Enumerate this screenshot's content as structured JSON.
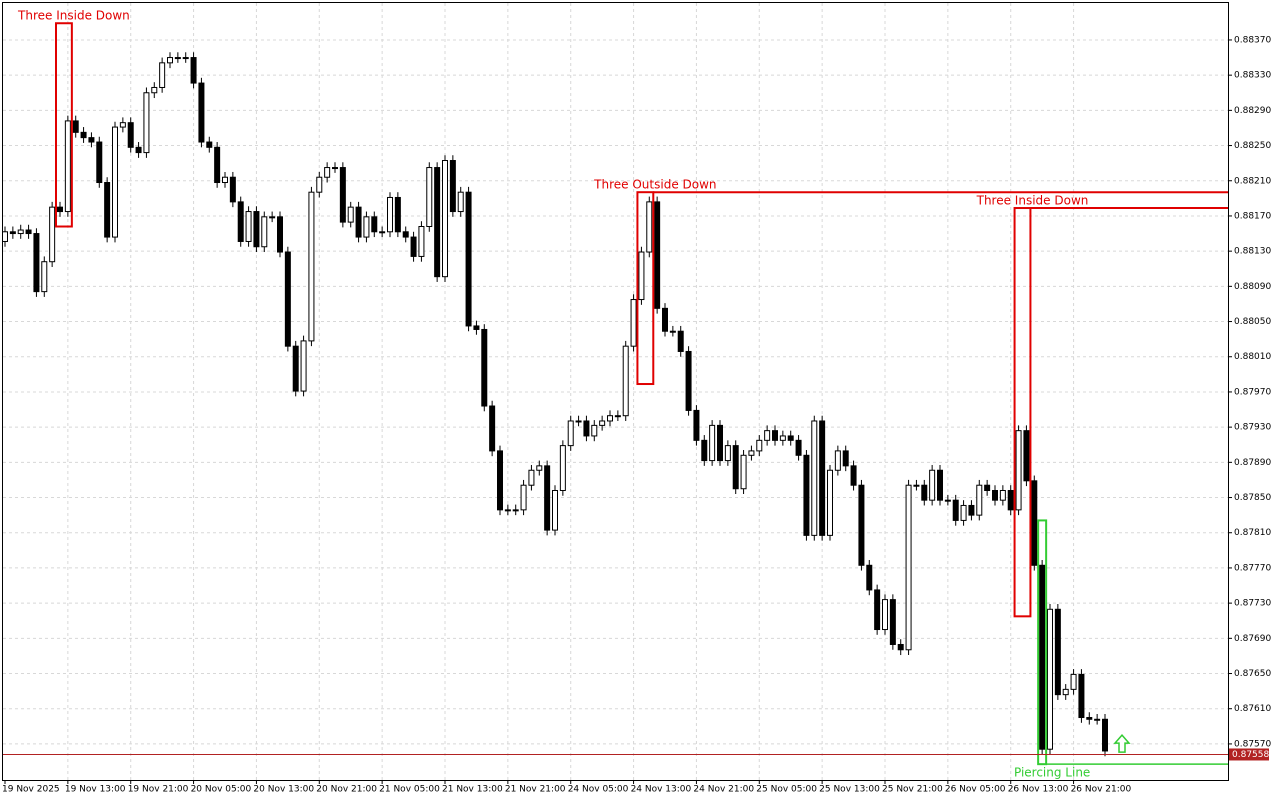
{
  "chart_data": {
    "type": "candlestick",
    "bull_color": "#ffffff",
    "bear_color": "#000000",
    "edge_color": "#000000",
    "grid": true,
    "ylim": [
      0.87529,
      0.88412
    ],
    "yticks": [
      {
        "value": 0.8837,
        "label": "0.88370"
      },
      {
        "value": 0.8833,
        "label": "0.88330"
      },
      {
        "value": 0.8829,
        "label": "0.88290"
      },
      {
        "value": 0.8825,
        "label": "0.88250"
      },
      {
        "value": 0.8821,
        "label": "0.88210"
      },
      {
        "value": 0.8817,
        "label": "0.88170"
      },
      {
        "value": 0.8813,
        "label": "0.88130"
      },
      {
        "value": 0.8809,
        "label": "0.88090"
      },
      {
        "value": 0.8805,
        "label": "0.88050"
      },
      {
        "value": 0.8801,
        "label": "0.88010"
      },
      {
        "value": 0.8797,
        "label": "0.87970"
      },
      {
        "value": 0.8793,
        "label": "0.87930"
      },
      {
        "value": 0.8789,
        "label": "0.87890"
      },
      {
        "value": 0.8785,
        "label": "0.87850"
      },
      {
        "value": 0.8781,
        "label": "0.87810"
      },
      {
        "value": 0.8777,
        "label": "0.87770"
      },
      {
        "value": 0.8773,
        "label": "0.87730"
      },
      {
        "value": 0.8769,
        "label": "0.87690"
      },
      {
        "value": 0.8765,
        "label": "0.87650"
      },
      {
        "value": 0.8761,
        "label": "0.87610"
      },
      {
        "value": 0.8757,
        "label": "0.87570"
      }
    ],
    "current_price": {
      "value": 0.87558,
      "label": "0.87558",
      "color": "#b22222"
    },
    "categories": [
      "19 Nov 2025",
      null,
      null,
      null,
      null,
      null,
      null,
      null,
      "19 Nov 13:00",
      null,
      null,
      null,
      null,
      null,
      null,
      null,
      "19 Nov 21:00",
      null,
      null,
      null,
      null,
      null,
      null,
      null,
      "20 Nov 05:00",
      null,
      null,
      null,
      null,
      null,
      null,
      null,
      "20 Nov 13:00",
      null,
      null,
      null,
      null,
      null,
      null,
      null,
      "20 Nov 21:00",
      null,
      null,
      null,
      null,
      null,
      null,
      null,
      "21 Nov 05:00",
      null,
      null,
      null,
      null,
      null,
      null,
      null,
      "21 Nov 13:00",
      null,
      null,
      null,
      null,
      null,
      null,
      null,
      "21 Nov 21:00",
      null,
      null,
      null,
      null,
      null,
      null,
      null,
      "24 Nov 05:00",
      null,
      null,
      null,
      null,
      null,
      null,
      null,
      "24 Nov 13:00",
      null,
      null,
      null,
      null,
      null,
      null,
      null,
      "24 Nov 21:00",
      null,
      null,
      null,
      null,
      null,
      null,
      null,
      "25 Nov 05:00",
      null,
      null,
      null,
      null,
      null,
      null,
      null,
      "25 Nov 13:00",
      null,
      null,
      null,
      null,
      null,
      null,
      null,
      "25 Nov 21:00",
      null,
      null,
      null,
      null,
      null,
      null,
      null,
      "26 Nov 05:00",
      null,
      null,
      null,
      null,
      null,
      null,
      null,
      "26 Nov 13:00",
      null,
      null,
      null,
      null,
      null,
      null,
      null,
      "26 Nov 21:00",
      null,
      null,
      null,
      null
    ],
    "ohlc": [
      [
        0.88141,
        0.88158,
        0.88135,
        0.88152
      ],
      [
        0.88152,
        0.88158,
        0.88144,
        0.8815
      ],
      [
        0.8815,
        0.8816,
        0.88144,
        0.88154
      ],
      [
        0.88154,
        0.8816,
        0.88144,
        0.8815
      ],
      [
        0.8815,
        0.88156,
        0.88078,
        0.88084
      ],
      [
        0.88084,
        0.88124,
        0.88078,
        0.88118
      ],
      [
        0.88118,
        0.88186,
        0.88112,
        0.8818
      ],
      [
        0.8818,
        0.88186,
        0.88169,
        0.88175
      ],
      [
        0.88175,
        0.88284,
        0.88169,
        0.88278
      ],
      [
        0.88278,
        0.88284,
        0.88259,
        0.88265
      ],
      [
        0.88265,
        0.88271,
        0.88253,
        0.88259
      ],
      [
        0.88259,
        0.88265,
        0.88248,
        0.88254
      ],
      [
        0.88254,
        0.8826,
        0.88202,
        0.88208
      ],
      [
        0.88208,
        0.88214,
        0.8814,
        0.88146
      ],
      [
        0.88146,
        0.88277,
        0.8814,
        0.88271
      ],
      [
        0.88271,
        0.88282,
        0.88265,
        0.88276
      ],
      [
        0.88276,
        0.88282,
        0.88242,
        0.88248
      ],
      [
        0.88248,
        0.88254,
        0.88236,
        0.88242
      ],
      [
        0.88242,
        0.88316,
        0.88236,
        0.8831
      ],
      [
        0.8831,
        0.88322,
        0.88304,
        0.88316
      ],
      [
        0.88316,
        0.8835,
        0.8831,
        0.88344
      ],
      [
        0.88344,
        0.88356,
        0.88338,
        0.8835
      ],
      [
        0.8835,
        0.88356,
        0.88344,
        0.8835
      ],
      [
        0.8835,
        0.88356,
        0.88344,
        0.8835
      ],
      [
        0.8835,
        0.88356,
        0.88315,
        0.88321
      ],
      [
        0.88321,
        0.88327,
        0.88248,
        0.88254
      ],
      [
        0.88254,
        0.8826,
        0.88242,
        0.88248
      ],
      [
        0.88248,
        0.88254,
        0.88202,
        0.88208
      ],
      [
        0.88208,
        0.8822,
        0.88202,
        0.88214
      ],
      [
        0.88214,
        0.8822,
        0.8818,
        0.88186
      ],
      [
        0.88186,
        0.88192,
        0.88135,
        0.88141
      ],
      [
        0.88141,
        0.88181,
        0.88135,
        0.88175
      ],
      [
        0.88175,
        0.88181,
        0.88129,
        0.88135
      ],
      [
        0.88135,
        0.88175,
        0.88129,
        0.88169
      ],
      [
        0.88169,
        0.88175,
        0.88163,
        0.88169
      ],
      [
        0.88169,
        0.88175,
        0.88123,
        0.88129
      ],
      [
        0.88129,
        0.88135,
        0.88016,
        0.88022
      ],
      [
        0.88022,
        0.88028,
        0.87965,
        0.87971
      ],
      [
        0.87971,
        0.88034,
        0.87965,
        0.88028
      ],
      [
        0.88028,
        0.88203,
        0.88022,
        0.88197
      ],
      [
        0.88197,
        0.8822,
        0.88191,
        0.88214
      ],
      [
        0.88214,
        0.88231,
        0.88208,
        0.88225
      ],
      [
        0.88225,
        0.88231,
        0.88219,
        0.88225
      ],
      [
        0.88225,
        0.88231,
        0.88157,
        0.88163
      ],
      [
        0.88163,
        0.88186,
        0.88157,
        0.8818
      ],
      [
        0.8818,
        0.88186,
        0.8814,
        0.88146
      ],
      [
        0.88146,
        0.88175,
        0.8814,
        0.88169
      ],
      [
        0.88169,
        0.88175,
        0.88146,
        0.88152
      ],
      [
        0.88152,
        0.88158,
        0.88146,
        0.88152
      ],
      [
        0.88152,
        0.88197,
        0.88146,
        0.88191
      ],
      [
        0.88191,
        0.88197,
        0.88146,
        0.88152
      ],
      [
        0.88152,
        0.88158,
        0.8814,
        0.88146
      ],
      [
        0.88146,
        0.88152,
        0.88118,
        0.88124
      ],
      [
        0.88124,
        0.88164,
        0.88118,
        0.88158
      ],
      [
        0.88158,
        0.88231,
        0.88152,
        0.88225
      ],
      [
        0.88225,
        0.88231,
        0.88095,
        0.88101
      ],
      [
        0.88101,
        0.88239,
        0.88095,
        0.88233
      ],
      [
        0.88233,
        0.88239,
        0.88169,
        0.88175
      ],
      [
        0.88175,
        0.88203,
        0.88169,
        0.88197
      ],
      [
        0.88197,
        0.88203,
        0.88039,
        0.88045
      ],
      [
        0.88045,
        0.88051,
        0.88035,
        0.88041
      ],
      [
        0.88041,
        0.88047,
        0.87948,
        0.87954
      ],
      [
        0.87954,
        0.8796,
        0.87897,
        0.87903
      ],
      [
        0.87903,
        0.87909,
        0.8783,
        0.87836
      ],
      [
        0.87836,
        0.87842,
        0.8783,
        0.87836
      ],
      [
        0.87836,
        0.87842,
        0.8783,
        0.87836
      ],
      [
        0.87836,
        0.8787,
        0.8783,
        0.87864
      ],
      [
        0.87864,
        0.87887,
        0.87858,
        0.87881
      ],
      [
        0.87881,
        0.87892,
        0.87875,
        0.87886
      ],
      [
        0.87886,
        0.87892,
        0.87807,
        0.87813
      ],
      [
        0.87813,
        0.87864,
        0.87807,
        0.87858
      ],
      [
        0.87858,
        0.87915,
        0.87852,
        0.87909
      ],
      [
        0.87909,
        0.87943,
        0.87903,
        0.87937
      ],
      [
        0.87937,
        0.87943,
        0.87931,
        0.87937
      ],
      [
        0.87937,
        0.87943,
        0.87914,
        0.8792
      ],
      [
        0.8792,
        0.87938,
        0.87914,
        0.87932
      ],
      [
        0.87932,
        0.87943,
        0.87926,
        0.87937
      ],
      [
        0.87937,
        0.87949,
        0.87931,
        0.87943
      ],
      [
        0.87943,
        0.87949,
        0.87937,
        0.87943
      ],
      [
        0.87943,
        0.88028,
        0.87937,
        0.88022
      ],
      [
        0.88022,
        0.88081,
        0.88016,
        0.88075
      ],
      [
        0.88075,
        0.88135,
        0.88069,
        0.88129
      ],
      [
        0.88129,
        0.88192,
        0.88123,
        0.88186
      ],
      [
        0.88186,
        0.88192,
        0.88059,
        0.88065
      ],
      [
        0.88065,
        0.88071,
        0.88033,
        0.88039
      ],
      [
        0.88039,
        0.88045,
        0.88033,
        0.88039
      ],
      [
        0.88039,
        0.88045,
        0.8801,
        0.88016
      ],
      [
        0.88016,
        0.88022,
        0.87943,
        0.87949
      ],
      [
        0.87949,
        0.87955,
        0.87909,
        0.87915
      ],
      [
        0.87915,
        0.87921,
        0.87886,
        0.87892
      ],
      [
        0.87892,
        0.87938,
        0.87886,
        0.87932
      ],
      [
        0.87932,
        0.87938,
        0.87886,
        0.87892
      ],
      [
        0.87892,
        0.87915,
        0.87886,
        0.87909
      ],
      [
        0.87909,
        0.87915,
        0.87854,
        0.8786
      ],
      [
        0.8786,
        0.87904,
        0.87854,
        0.87898
      ],
      [
        0.87898,
        0.87909,
        0.87892,
        0.87903
      ],
      [
        0.87903,
        0.87921,
        0.87897,
        0.87915
      ],
      [
        0.87915,
        0.87932,
        0.87909,
        0.87926
      ],
      [
        0.87926,
        0.87932,
        0.87909,
        0.87915
      ],
      [
        0.87915,
        0.87926,
        0.87909,
        0.8792
      ],
      [
        0.8792,
        0.87926,
        0.87909,
        0.87915
      ],
      [
        0.87915,
        0.87921,
        0.87892,
        0.87898
      ],
      [
        0.87898,
        0.87904,
        0.87801,
        0.87807
      ],
      [
        0.87807,
        0.87943,
        0.87801,
        0.87937
      ],
      [
        0.87937,
        0.87943,
        0.87801,
        0.87807
      ],
      [
        0.87807,
        0.87887,
        0.87801,
        0.87881
      ],
      [
        0.87881,
        0.87909,
        0.87875,
        0.87903
      ],
      [
        0.87903,
        0.87909,
        0.8788,
        0.87886
      ],
      [
        0.87886,
        0.87892,
        0.87858,
        0.87864
      ],
      [
        0.87864,
        0.8787,
        0.87767,
        0.87773
      ],
      [
        0.87773,
        0.87779,
        0.87739,
        0.87745
      ],
      [
        0.87745,
        0.87751,
        0.87694,
        0.877
      ],
      [
        0.877,
        0.8774,
        0.87694,
        0.87734
      ],
      [
        0.87734,
        0.8774,
        0.87677,
        0.87683
      ],
      [
        0.87683,
        0.87689,
        0.87671,
        0.87677
      ],
      [
        0.87677,
        0.8787,
        0.87671,
        0.87864
      ],
      [
        0.87864,
        0.8787,
        0.87858,
        0.87864
      ],
      [
        0.87864,
        0.8787,
        0.87841,
        0.87847
      ],
      [
        0.87847,
        0.87887,
        0.87841,
        0.87881
      ],
      [
        0.87881,
        0.87887,
        0.87841,
        0.87847
      ],
      [
        0.87847,
        0.87853,
        0.87841,
        0.87847
      ],
      [
        0.87847,
        0.87853,
        0.87818,
        0.87824
      ],
      [
        0.87824,
        0.87847,
        0.87818,
        0.87841
      ],
      [
        0.87841,
        0.87847,
        0.87824,
        0.8783
      ],
      [
        0.8783,
        0.8787,
        0.87824,
        0.87864
      ],
      [
        0.87864,
        0.8787,
        0.87852,
        0.87858
      ],
      [
        0.87858,
        0.87864,
        0.87841,
        0.87847
      ],
      [
        0.87847,
        0.87864,
        0.87841,
        0.87858
      ],
      [
        0.87858,
        0.87864,
        0.8783,
        0.87836
      ],
      [
        0.87836,
        0.87932,
        0.8783,
        0.87926
      ],
      [
        0.87926,
        0.87932,
        0.87863,
        0.87869
      ],
      [
        0.87869,
        0.87875,
        0.87767,
        0.87773
      ],
      [
        0.87773,
        0.87779,
        0.87558,
        0.87564
      ],
      [
        0.87564,
        0.87729,
        0.87558,
        0.87723
      ],
      [
        0.87723,
        0.87729,
        0.8762,
        0.87626
      ],
      [
        0.87626,
        0.87638,
        0.8762,
        0.87632
      ],
      [
        0.87632,
        0.87655,
        0.87626,
        0.87649
      ],
      [
        0.87649,
        0.87655,
        0.87594,
        0.876
      ],
      [
        0.876,
        0.87606,
        0.87592,
        0.87598
      ],
      [
        0.87598,
        0.87604,
        0.87592,
        0.87598
      ],
      [
        0.87598,
        0.87604,
        0.87556,
        0.87562
      ]
    ],
    "patterns": [
      {
        "label": "Three Inside Down",
        "color": "#e00000",
        "first": 7,
        "last": 8,
        "top": 0.88389,
        "bottom": 0.88158,
        "extend": "none"
      },
      {
        "label": "Three Outside Down",
        "color": "#e00000",
        "first": 81,
        "last": 82,
        "top": 0.88197,
        "bottom": 0.87979,
        "extend": "top"
      },
      {
        "label": "Three Inside Down",
        "color": "#e00000",
        "first": 129,
        "last": 130,
        "top": 0.88179,
        "bottom": 0.87715,
        "extend": "top"
      },
      {
        "label": "Piercing Line",
        "color": "#33cc33",
        "first": 132,
        "last": 132,
        "top": 0.87824,
        "bottom": 0.87547,
        "extend": "bottom"
      }
    ]
  }
}
